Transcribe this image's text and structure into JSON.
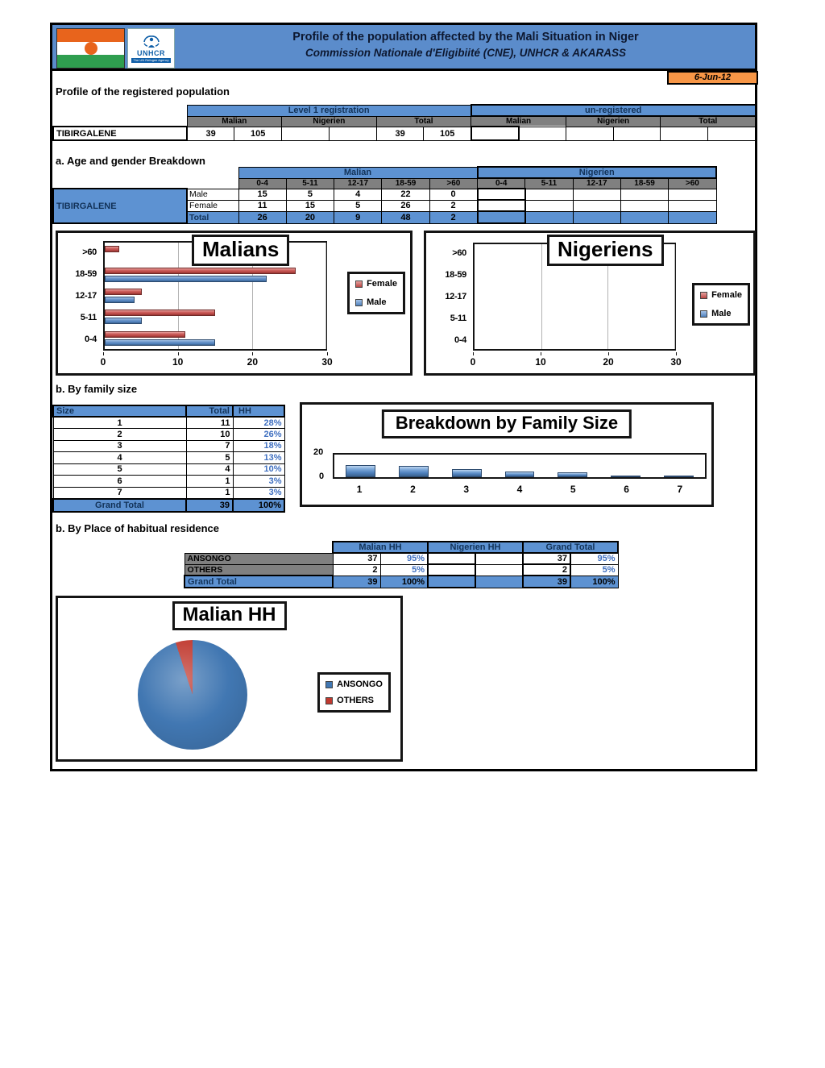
{
  "header": {
    "title_line1": "Profile of the population affected by the Mali Situation in Niger",
    "title_line2": "Commission Nationale d'Eligibiité (CNE), UNHCR & AKARASS",
    "date": "6-Jun-12",
    "unhcr_label": "UNHCR",
    "unhcr_tagline": "The UN Refugee Agency"
  },
  "sections": {
    "registered": "Profile of the registered population",
    "age": "a. Age and gender Breakdown",
    "family": "b. By family size",
    "residence": "b. By Place of habitual residence"
  },
  "registration_table": {
    "row_label": "TIBIRGALENE",
    "groups": [
      "Level 1 registration",
      "un-registered"
    ],
    "subheaders": [
      "Malian",
      "Nigerien",
      "Total",
      "Malian",
      "Nigerien",
      "Total"
    ],
    "values": [
      "39",
      "105",
      "",
      "",
      "39",
      "105",
      "",
      "",
      "",
      "",
      "",
      ""
    ]
  },
  "age_table": {
    "row_label": "TIBIRGALENE",
    "groups": [
      "Malian",
      "Nigerien"
    ],
    "age_bands": [
      "0-4",
      "5-11",
      "12-17",
      "18-59",
      ">60",
      "0-4",
      "5-11",
      "12-17",
      "18-59",
      ">60"
    ],
    "rows": [
      {
        "label": "Male",
        "cells": [
          "15",
          "5",
          "4",
          "22",
          "0",
          "",
          "",
          "",
          "",
          ""
        ]
      },
      {
        "label": "Female",
        "cells": [
          "11",
          "15",
          "5",
          "26",
          "2",
          "",
          "",
          "",
          "",
          ""
        ]
      },
      {
        "label": "Total",
        "cells": [
          "26",
          "20",
          "9",
          "48",
          "2",
          "",
          "",
          "",
          "",
          ""
        ]
      }
    ]
  },
  "family_table": {
    "header_size": "Size",
    "header_total": "Total",
    "header_hh": "HH",
    "rows": [
      {
        "size": "1",
        "count": "11",
        "pct": "28%"
      },
      {
        "size": "2",
        "count": "10",
        "pct": "26%"
      },
      {
        "size": "3",
        "count": "7",
        "pct": "18%"
      },
      {
        "size": "4",
        "count": "5",
        "pct": "13%"
      },
      {
        "size": "5",
        "count": "4",
        "pct": "10%"
      },
      {
        "size": "6",
        "count": "1",
        "pct": "3%"
      },
      {
        "size": "7",
        "count": "1",
        "pct": "3%"
      }
    ],
    "grand": {
      "label": "Grand Total",
      "count": "39",
      "pct": "100%"
    }
  },
  "residence_table": {
    "headers": [
      "Malian HH",
      "Nigerien HH",
      "Grand Total"
    ],
    "rows": [
      {
        "label": "ANSONGO",
        "cells": [
          "37",
          "95%",
          "",
          "",
          "37",
          "95%"
        ]
      },
      {
        "label": "OTHERS",
        "cells": [
          "2",
          "5%",
          "",
          "",
          "2",
          "5%"
        ]
      }
    ],
    "grand": {
      "label": "Grand Total",
      "cells": [
        "39",
        "100%",
        "",
        "",
        "39",
        "100%"
      ]
    }
  },
  "chart_data": [
    {
      "type": "bar",
      "orientation": "horizontal",
      "title": "Malians",
      "categories": [
        ">60",
        "18-59",
        "12-17",
        "5-11",
        "0-4"
      ],
      "series": [
        {
          "name": "Female",
          "color": "#C0504D",
          "values": [
            2,
            26,
            5,
            15,
            11
          ]
        },
        {
          "name": "Male",
          "color": "#4F81BD",
          "values": [
            0,
            22,
            4,
            5,
            15
          ]
        }
      ],
      "xlim": [
        0,
        30
      ],
      "xticks": [
        0,
        10,
        20,
        30
      ],
      "grid": true,
      "legend_position": "right"
    },
    {
      "type": "bar",
      "orientation": "horizontal",
      "title": "Nigeriens",
      "categories": [
        ">60",
        "18-59",
        "12-17",
        "5-11",
        "0-4"
      ],
      "series": [
        {
          "name": "Female",
          "color": "#C0504D",
          "values": [
            0,
            0,
            0,
            0,
            0
          ]
        },
        {
          "name": "Male",
          "color": "#4F81BD",
          "values": [
            0,
            0,
            0,
            0,
            0
          ]
        }
      ],
      "xlim": [
        0,
        30
      ],
      "xticks": [
        0,
        10,
        20,
        30
      ],
      "grid": true,
      "legend_position": "right"
    },
    {
      "type": "bar",
      "orientation": "vertical",
      "title": "Breakdown by Family Size",
      "categories": [
        "1",
        "2",
        "3",
        "4",
        "5",
        "6",
        "7"
      ],
      "values": [
        11,
        10,
        7,
        5,
        4,
        1,
        1
      ],
      "ylim": [
        0,
        20
      ],
      "yticks": [
        0,
        20
      ],
      "grid": false
    },
    {
      "type": "pie",
      "title": "Malian HH",
      "labels": [
        "ANSONGO",
        "OTHERS"
      ],
      "values": [
        95,
        5
      ],
      "colors": [
        "#4177B2",
        "#C0392F"
      ],
      "legend_position": "right"
    }
  ],
  "colors": {
    "banner_blue": "#5b8ccb",
    "table_blue": "#5d92d2",
    "header_grey": "#808080",
    "date_orange": "#f79646",
    "pct_blue": "#3f6fc0",
    "flag_orange": "#e8641c",
    "flag_green": "#2f9e4f"
  }
}
